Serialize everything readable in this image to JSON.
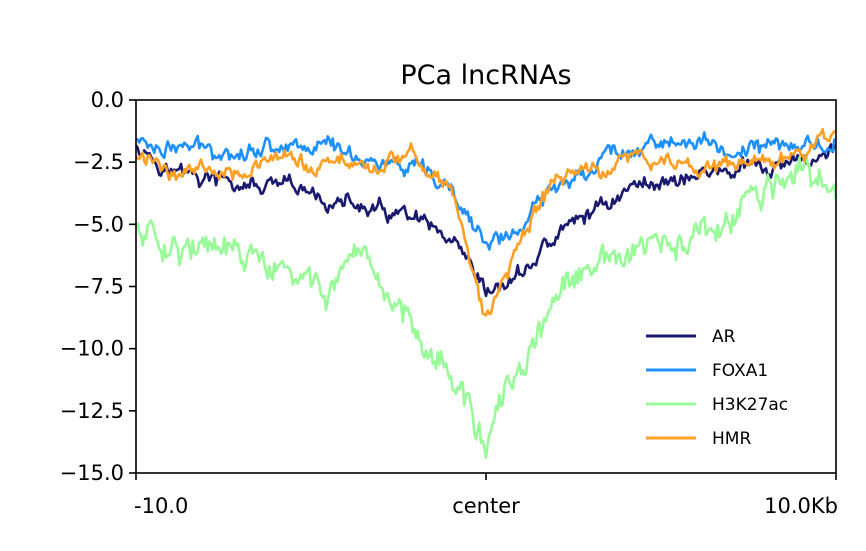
{
  "chart_data": {
    "type": "line",
    "title": "PCa lncRNAs",
    "xlabel": "",
    "ylabel": "",
    "x_ticks": [
      "-10.0",
      "center",
      "10.0Kb"
    ],
    "x_range": [
      -10,
      10
    ],
    "y_ticks": [
      "0.0",
      "−2.5",
      "−5.0",
      "−7.5",
      "−10.0",
      "−12.5",
      "−15.0"
    ],
    "y_tick_values": [
      0,
      -2.5,
      -5,
      -7.5,
      -10,
      -12.5,
      -15
    ],
    "ylim": [
      -15,
      0
    ],
    "grid": false,
    "legend_position": "lower-right",
    "x": [
      -10,
      -9,
      -8,
      -7,
      -6,
      -5,
      -4,
      -3,
      -2,
      -1,
      0,
      1,
      2,
      3,
      4,
      5,
      6,
      7,
      8,
      9,
      10
    ],
    "series": [
      {
        "name": "AR",
        "color": "#191970",
        "values": [
          -1.6,
          -2.8,
          -3.2,
          -3.5,
          -3.6,
          -3.9,
          -4.2,
          -4.6,
          -4.9,
          -6.0,
          -8.0,
          -7.0,
          -5.5,
          -4.5,
          -3.6,
          -3.2,
          -3.0,
          -2.8,
          -2.9,
          -2.6,
          -1.8
        ]
      },
      {
        "name": "FOXA1",
        "color": "#1E90FF",
        "values": [
          -1.6,
          -1.9,
          -2.0,
          -1.9,
          -1.8,
          -1.7,
          -2.0,
          -2.5,
          -3.0,
          -3.8,
          -5.8,
          -5.2,
          -3.5,
          -2.5,
          -1.9,
          -1.6,
          -1.8,
          -2.0,
          -1.9,
          -1.8,
          -1.7
        ]
      },
      {
        "name": "H3K27ac",
        "color": "#98FB98",
        "values": [
          -5.2,
          -5.5,
          -6.2,
          -6.3,
          -7.0,
          -7.6,
          -7.2,
          -7.8,
          -8.8,
          -11.0,
          -13.8,
          -11.0,
          -8.0,
          -7.0,
          -6.3,
          -6.0,
          -5.8,
          -5.0,
          -3.6,
          -3.0,
          -4.0
        ]
      },
      {
        "name": "HMR",
        "color": "#FFA024",
        "values": [
          -2.3,
          -2.8,
          -2.7,
          -2.6,
          -2.5,
          -2.7,
          -2.5,
          -2.6,
          -2.3,
          -3.5,
          -9.0,
          -5.5,
          -3.2,
          -2.8,
          -2.4,
          -2.5,
          -2.6,
          -2.6,
          -2.5,
          -2.2,
          -1.5
        ]
      }
    ]
  }
}
